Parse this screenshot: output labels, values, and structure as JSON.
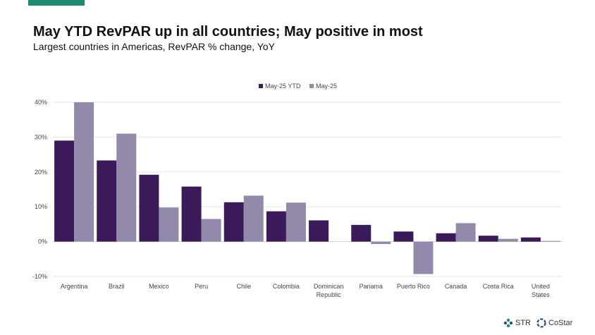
{
  "header": {
    "title": "May YTD RevPAR up in all countries; May positive in most",
    "subtitle": "Largest countries in Americas, RevPAR % change, YoY"
  },
  "brand": {
    "accent_color": "#1f8a70",
    "logos": [
      {
        "name": "str-logo",
        "text": "STR"
      },
      {
        "name": "costar-logo",
        "text": "CoStar"
      }
    ]
  },
  "chart_data": {
    "type": "bar",
    "categories": [
      "Argentina",
      "Brazil",
      "Mexico",
      "Peru",
      "Chile",
      "Colombia",
      "Dominican Republic",
      "Panama",
      "Puerto Rico",
      "Canada",
      "Costa Rica",
      "United States"
    ],
    "series": [
      {
        "name": "May-25 YTD",
        "color": "#3b1a5a",
        "values": [
          29.0,
          23.3,
          19.2,
          15.8,
          11.3,
          8.7,
          6.1,
          4.8,
          2.9,
          2.4,
          1.7,
          1.2
        ]
      },
      {
        "name": "May-25",
        "color": "#938aab",
        "values": [
          40.0,
          31.0,
          9.8,
          6.5,
          13.2,
          11.2,
          0.0,
          -0.7,
          -9.3,
          5.3,
          0.8,
          0.2
        ]
      }
    ],
    "ylim": [
      -10,
      40
    ],
    "yticks": [
      -10,
      0,
      10,
      20,
      30,
      40
    ],
    "ytick_labels": [
      "-10%",
      "0%",
      "10%",
      "20%",
      "30%",
      "40%"
    ],
    "legend_position": "top-center",
    "grid": true,
    "title": "",
    "xlabel": "",
    "ylabel": ""
  }
}
